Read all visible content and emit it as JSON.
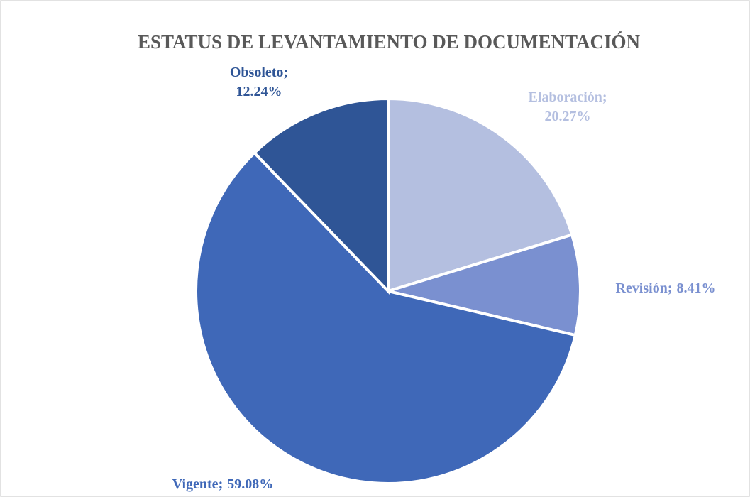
{
  "chart_data": {
    "type": "pie",
    "title": "ESTATUS DE LEVANTAMIENTO DE DOCUMENTACIÓN",
    "categories": [
      "Elaboración",
      "Revisión",
      "Vigente",
      "Obsoleto"
    ],
    "values": [
      20.27,
      8.41,
      59.08,
      12.24
    ],
    "value_labels": [
      "20.27%",
      "8.41%",
      "59.08%",
      "12.24%"
    ],
    "label_separator": ";",
    "colors": [
      "#b4bfe0",
      "#7a90d0",
      "#3f68b8",
      "#2f5596"
    ]
  }
}
